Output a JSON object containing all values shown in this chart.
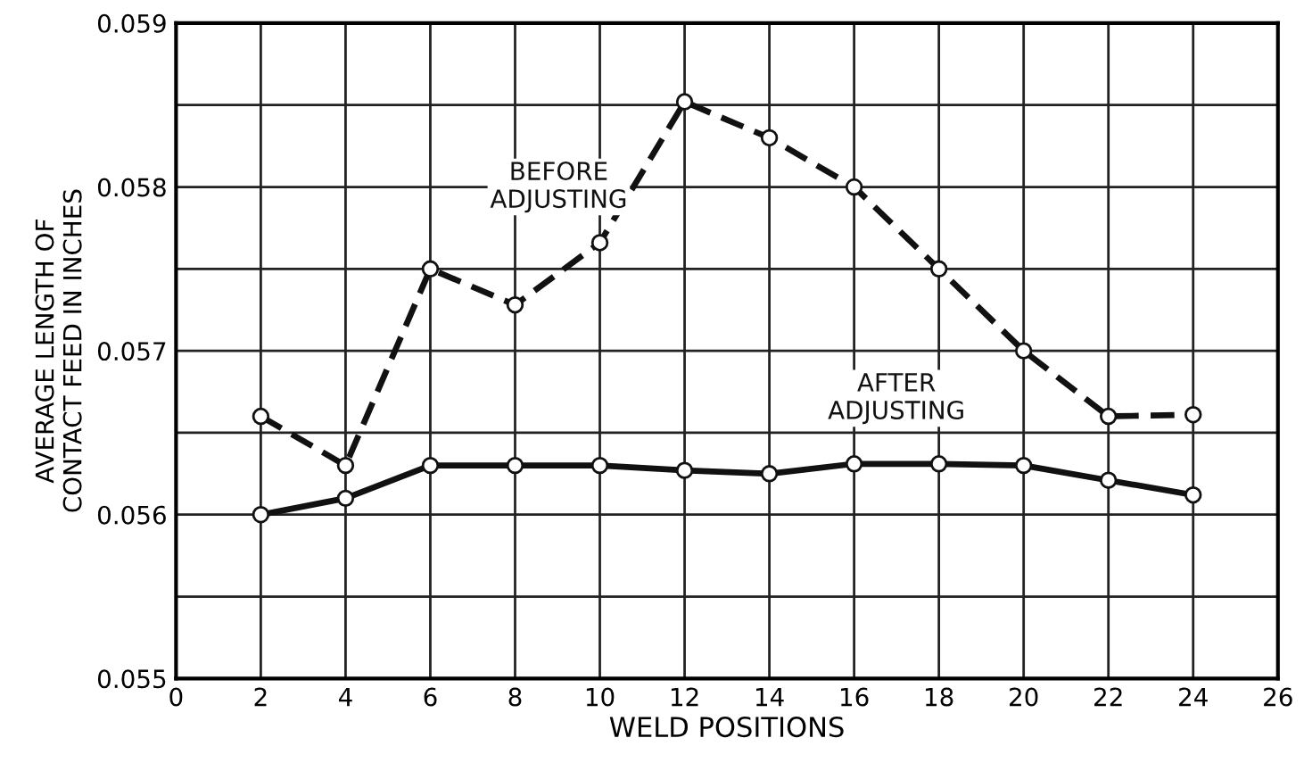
{
  "chart_data": {
    "type": "line",
    "xlabel": "WELD POSITIONS",
    "ylabel": "AVERAGE LENGTH OF\nCONTACT FEED IN INCHES",
    "x": [
      2,
      4,
      6,
      8,
      10,
      12,
      14,
      16,
      18,
      20,
      22,
      24
    ],
    "series": [
      {
        "name": "BEFORE\nADJUSTING",
        "color": "#111111",
        "line_style": "dashed",
        "values": [
          0.0566,
          0.0563,
          0.0575,
          0.05728,
          0.05766,
          0.05852,
          0.0583,
          0.058,
          0.0575,
          0.057,
          0.0566,
          0.05661
        ]
      },
      {
        "name": "AFTER\nADJUSTING",
        "color": "#111111",
        "line_style": "solid",
        "values": [
          0.056,
          0.0561,
          0.0563,
          0.0563,
          0.0563,
          0.05627,
          0.05625,
          0.05631,
          0.05631,
          0.0563,
          0.05621,
          0.05612
        ]
      }
    ],
    "xlim": [
      0,
      26
    ],
    "xticks": [
      0,
      2,
      4,
      6,
      8,
      10,
      12,
      14,
      16,
      18,
      20,
      22,
      24,
      26
    ],
    "ylim": [
      0.055,
      0.059
    ],
    "yticks": [
      {
        "value": 0.055,
        "label": "0.055"
      },
      {
        "value": 0.0555,
        "label": null
      },
      {
        "value": 0.056,
        "label": "0.056"
      },
      {
        "value": 0.0565,
        "label": null
      },
      {
        "value": 0.057,
        "label": "0.057"
      },
      {
        "value": 0.0575,
        "label": null
      },
      {
        "value": 0.058,
        "label": "0.058"
      },
      {
        "value": 0.0585,
        "label": null
      },
      {
        "value": 0.059,
        "label": "0.059"
      }
    ],
    "grid": true,
    "legend": false,
    "marker": "circle"
  }
}
